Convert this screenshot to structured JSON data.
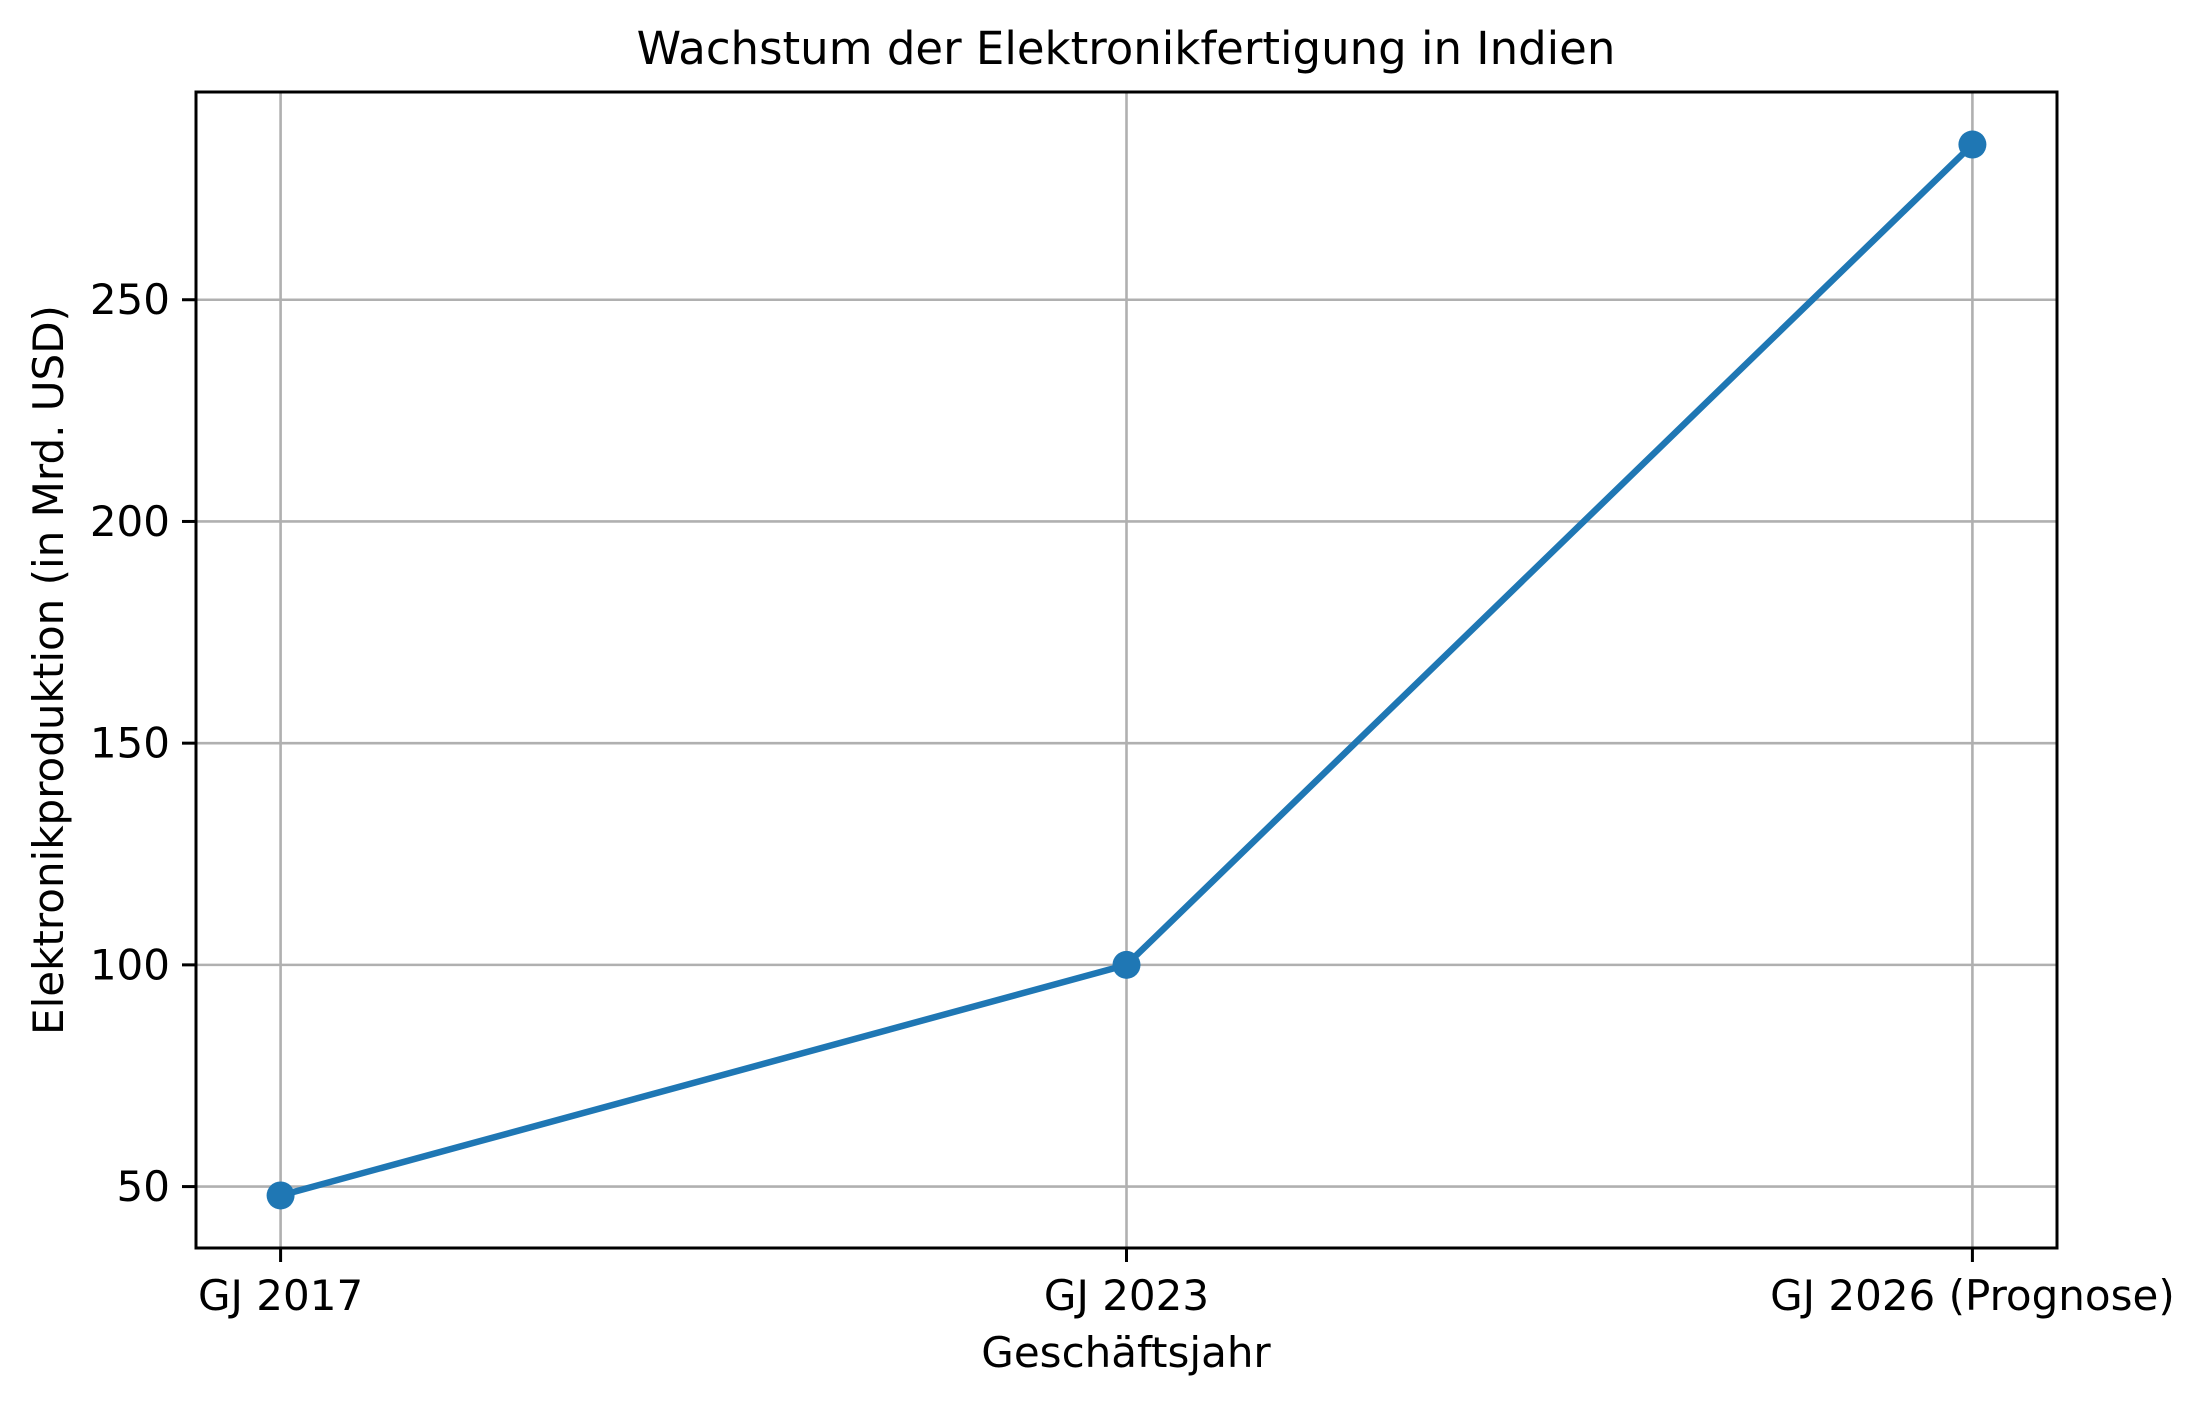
{
  "figure": {
    "background_color": "#ffffff"
  },
  "chart_data": {
    "type": "line",
    "title": "Wachstum der Elektronikfertigung in Indien",
    "xlabel": "Geschäftsjahr",
    "ylabel": "Elektronikproduktion (in Mrd. USD)",
    "categories": [
      "GJ 2017",
      "GJ 2023",
      "GJ 2026 (Prognose)"
    ],
    "values": [
      48,
      100,
      285
    ],
    "y_ticks": [
      50,
      100,
      150,
      200,
      250
    ],
    "ylim": [
      36.15,
      296.85
    ],
    "xlim": [
      -0.1,
      2.1
    ],
    "grid": true,
    "legend": "none",
    "line_color": "#1f77b4",
    "marker": "o",
    "grid_color": "#b0b0b0",
    "frame_color": "#000000",
    "text_color": "#000000"
  }
}
